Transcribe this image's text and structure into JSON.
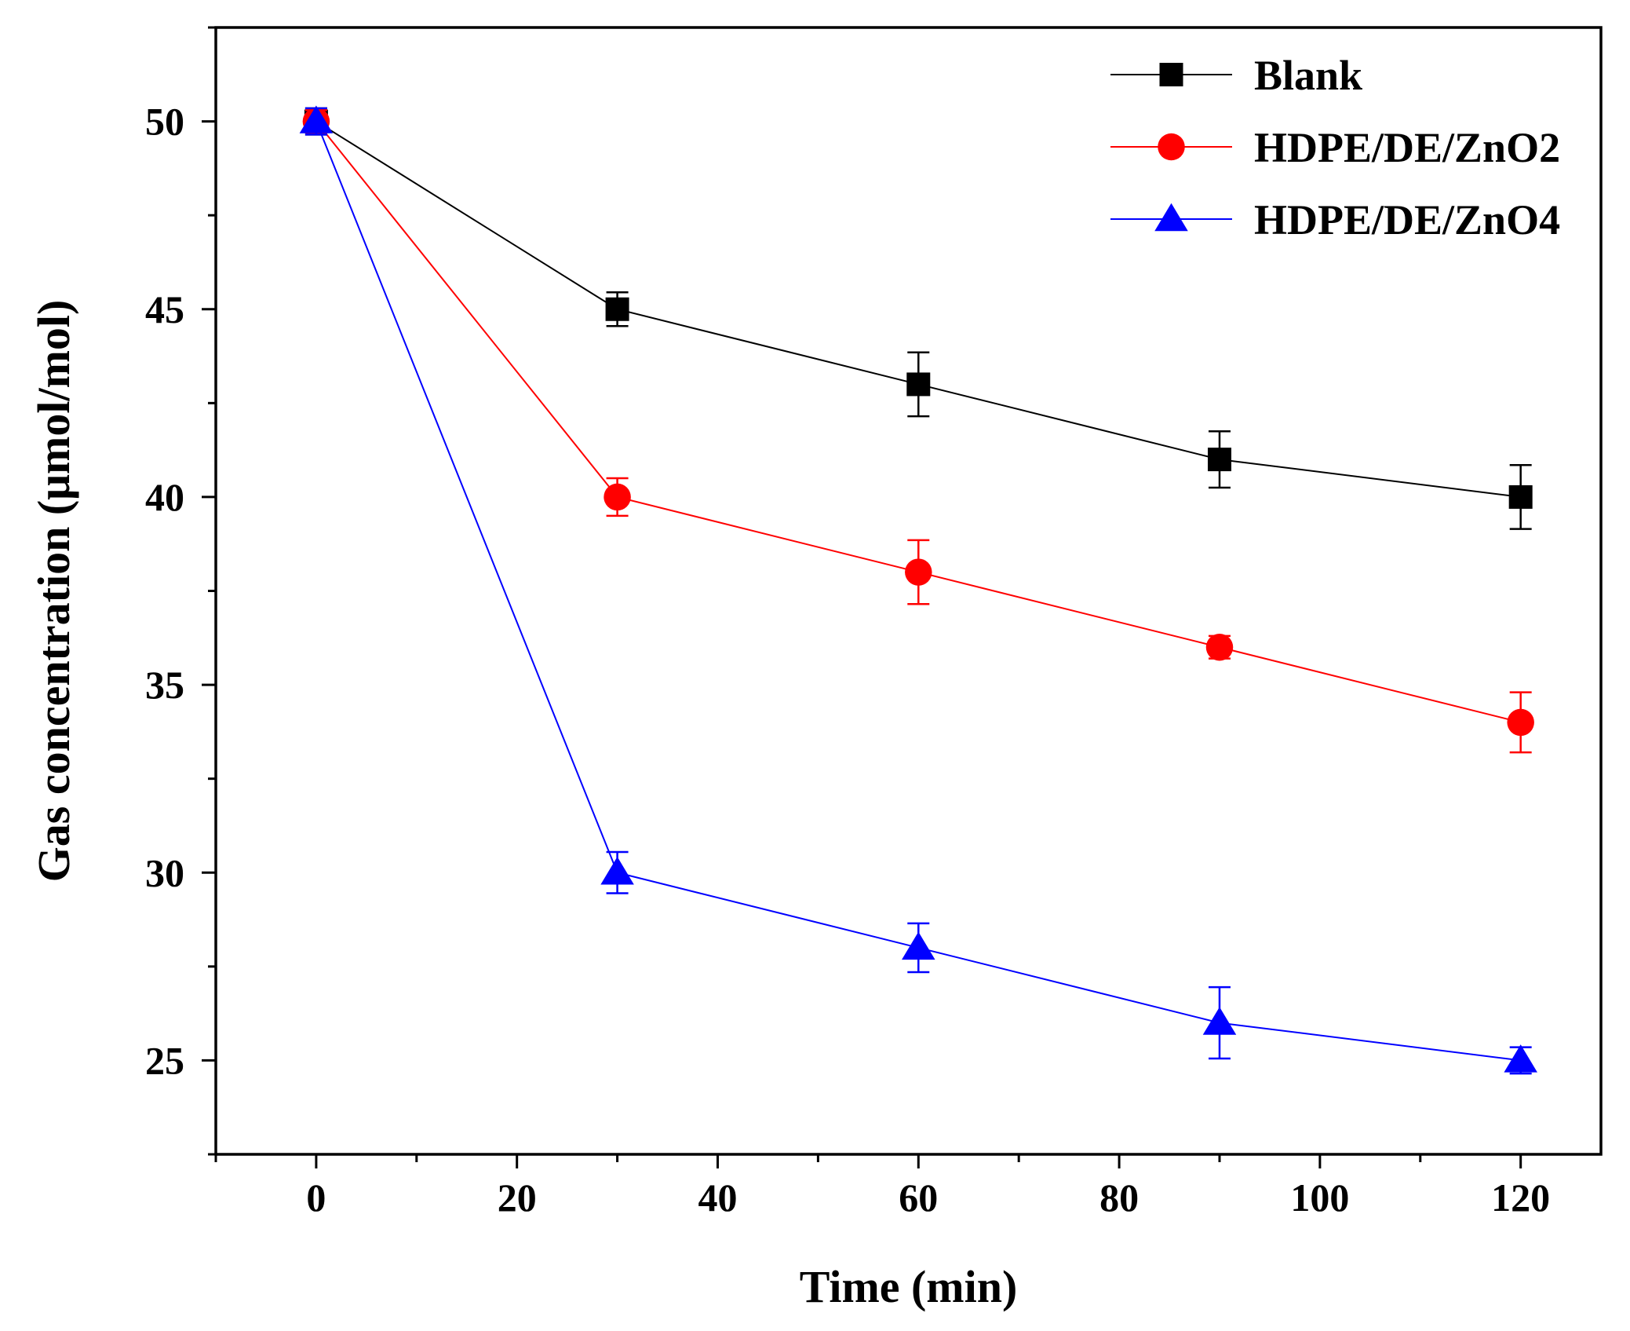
{
  "chart_data": {
    "type": "line",
    "title": "",
    "xlabel": "Time (min)",
    "ylabel": "Gas concentration (μmol/mol)",
    "xlim": [
      -10,
      128
    ],
    "ylim": [
      22.5,
      52.5
    ],
    "x_ticks": [
      0,
      20,
      40,
      60,
      80,
      100,
      120
    ],
    "x_tick_labels": [
      "0",
      "20",
      "40",
      "60",
      "80",
      "100",
      "120"
    ],
    "y_ticks": [
      25,
      30,
      35,
      40,
      45,
      50
    ],
    "y_tick_labels": [
      "25",
      "30",
      "35",
      "40",
      "45",
      "50"
    ],
    "x": [
      0,
      30,
      60,
      90,
      120
    ],
    "legend_position": "top-right",
    "series": [
      {
        "name": "Blank",
        "color": "#000000",
        "marker": "square",
        "values": [
          50,
          45,
          43,
          41,
          40
        ],
        "errors": [
          0.35,
          0.45,
          0.85,
          0.75,
          0.85
        ]
      },
      {
        "name": "HDPE/DE/ZnO2",
        "color": "#ff0000",
        "marker": "circle",
        "values": [
          50,
          40,
          38,
          36,
          34
        ],
        "errors": [
          0.3,
          0.5,
          0.85,
          0.3,
          0.8
        ]
      },
      {
        "name": "HDPE/DE/ZnO4",
        "color": "#0000ff",
        "marker": "triangle",
        "values": [
          50,
          30,
          28,
          26,
          25
        ],
        "errors": [
          0.35,
          0.55,
          0.65,
          0.95,
          0.35
        ]
      }
    ]
  }
}
